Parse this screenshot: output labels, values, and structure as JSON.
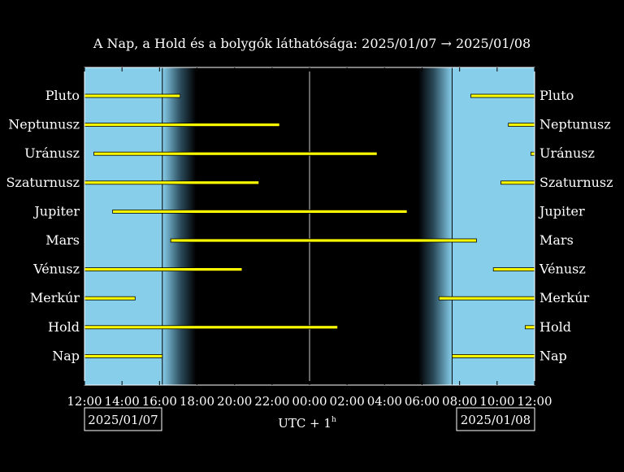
{
  "chart_data": {
    "type": "bar",
    "title": "A Nap, a Hold és a bolygók láthatósága: 2025/01/07 → 2025/01/08",
    "xlabel": "UTC + 1",
    "xlabel_sup": "h",
    "x_start_label": "2025/01/07",
    "x_end_label": "2025/01/08",
    "x_range_hours": [
      0,
      24
    ],
    "x_ticks": [
      "12:00",
      "14:00",
      "16:00",
      "18:00",
      "20:00",
      "22:00",
      "00:00",
      "02:00",
      "04:00",
      "06:00",
      "08:00",
      "10:00",
      "12:00"
    ],
    "sunset_hour": 4.15,
    "sunrise_hour": 19.6,
    "twilight_hours": 1.8,
    "midnight_hour": 12,
    "colors": {
      "day": "#87ceeb",
      "night": "#000000",
      "bar": "#ffff00",
      "bar_border": "#000000",
      "line": "#ffffff"
    },
    "categories": [
      "Pluto",
      "Neptunusz",
      "Uránusz",
      "Szaturnusz",
      "Jupiter",
      "Mars",
      "Vénusz",
      "Merkúr",
      "Hold",
      "Nap"
    ],
    "intervals": [
      [
        [
          0,
          5.1
        ],
        [
          20.6,
          24
        ]
      ],
      [
        [
          0,
          10.4
        ],
        [
          22.6,
          24
        ]
      ],
      [
        [
          0.5,
          15.6
        ],
        [
          23.8,
          24
        ]
      ],
      [
        [
          0,
          9.3
        ],
        [
          22.2,
          24
        ]
      ],
      [
        [
          1.5,
          17.2
        ]
      ],
      [
        [
          4.6,
          20.9
        ]
      ],
      [
        [
          0,
          8.4
        ],
        [
          21.8,
          24
        ]
      ],
      [
        [
          0,
          2.7
        ],
        [
          18.9,
          24
        ]
      ],
      [
        [
          0,
          13.5
        ],
        [
          23.5,
          24
        ]
      ],
      [
        [
          0,
          4.15
        ],
        [
          19.6,
          24
        ]
      ]
    ]
  }
}
